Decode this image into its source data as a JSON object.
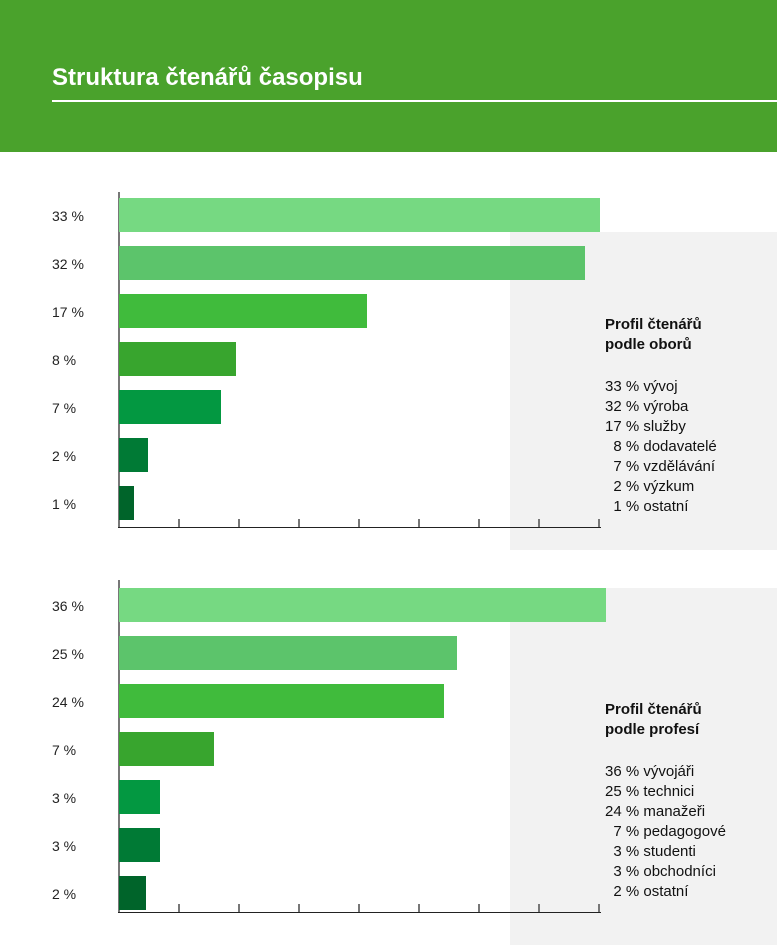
{
  "title": "Struktura čtenářů časopisu",
  "chart_data": [
    {
      "type": "bar",
      "orientation": "horizontal",
      "title": "Profil čtenářů podle oborů",
      "title_lines": [
        "Profil čtenářů",
        "podle oborů"
      ],
      "categories": [
        "vývoj",
        "výroba",
        "služby",
        "dodavatelé",
        "vzdělávání",
        "výzkum",
        "ostatní"
      ],
      "values": [
        33,
        32,
        17,
        8,
        7,
        2,
        1
      ],
      "value_labels": [
        "33 %",
        "32 %",
        "17 %",
        "8 %",
        "7 %",
        "2 %",
        "1 %"
      ],
      "legend_rows": [
        "33 % vývoj",
        "32 % výroba",
        "17 % služby",
        "  8 % dodavatelé",
        "  7 % vzdělávání",
        "  2 % výzkum",
        "  1 % ostatní"
      ],
      "colors": [
        "#76d982",
        "#5cc46b",
        "#40bb3c",
        "#38a52e",
        "#039841",
        "#007a35",
        "#00642a"
      ],
      "unit": "%"
    },
    {
      "type": "bar",
      "orientation": "horizontal",
      "title": "Profil čtenářů podle profesí",
      "title_lines": [
        "Profil čtenářů",
        "podle profesí"
      ],
      "categories": [
        "vývojáři",
        "technici",
        "manažeři",
        "pedagogové",
        "studenti",
        "obchodníci",
        "ostatní"
      ],
      "values": [
        36,
        25,
        24,
        7,
        3,
        3,
        2
      ],
      "value_labels": [
        "36 %",
        "25 %",
        "24 %",
        "7 %",
        "3 %",
        "3 %",
        "2 %"
      ],
      "legend_rows": [
        "36 % vývojáři",
        "25 % technici",
        "24 % manažeři",
        "  7 % pedagogové",
        "  3 % studenti",
        "  3 % obchodníci",
        "  2 % ostatní"
      ],
      "colors": [
        "#76d982",
        "#5cc46b",
        "#40bb3c",
        "#38a52e",
        "#039841",
        "#007a35",
        "#00642a"
      ],
      "unit": "%"
    }
  ]
}
